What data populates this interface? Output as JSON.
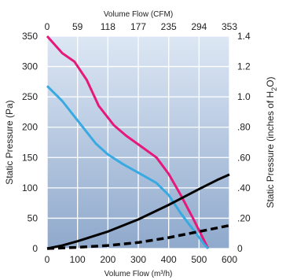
{
  "chart_data": {
    "type": "line",
    "title": "",
    "xlabel_bottom": "Volume Flow (m³/h)",
    "xlabel_top": "Volume Flow (CFM)",
    "ylabel_left": "Static Pressure (Pa)",
    "ylabel_right_prefix": "Static Pressure (inches of H",
    "ylabel_right_sub": "2",
    "ylabel_right_suffix": "O)",
    "xlim": [
      0,
      600
    ],
    "ylim": [
      0,
      350
    ],
    "ylim_right": [
      0,
      1.4
    ],
    "x_ticks": [
      "0",
      "100",
      "200",
      "300",
      "400",
      "500",
      "600"
    ],
    "x_tick_values": [
      0,
      100,
      200,
      300,
      400,
      500,
      600
    ],
    "x_top_ticks": [
      "0",
      "59",
      "118",
      "177",
      "235",
      "294",
      "353"
    ],
    "y_ticks": [
      "0",
      "50",
      "100",
      "150",
      "200",
      "250",
      "300",
      "350"
    ],
    "y_tick_values": [
      0,
      50,
      100,
      150,
      200,
      250,
      300,
      350
    ],
    "y_right_ticks": [
      "0",
      ".20",
      ".40",
      ".60",
      ".80",
      "1.0",
      "1.2",
      "1.4"
    ],
    "grid": true,
    "background_gradient": [
      "#dde7f4",
      "#8fa9cc"
    ],
    "series": [
      {
        "color": "#e6187a",
        "style": "solid",
        "points": [
          [
            0,
            350
          ],
          [
            50,
            322
          ],
          [
            90,
            308
          ],
          [
            130,
            278
          ],
          [
            170,
            235
          ],
          [
            220,
            203
          ],
          [
            260,
            186
          ],
          [
            310,
            168
          ],
          [
            360,
            150
          ],
          [
            400,
            123
          ],
          [
            440,
            88
          ],
          [
            480,
            50
          ],
          [
            510,
            20
          ],
          [
            530,
            0
          ]
        ]
      },
      {
        "color": "#39a9e2",
        "style": "solid",
        "points": [
          [
            0,
            268
          ],
          [
            50,
            243
          ],
          [
            110,
            205
          ],
          [
            160,
            173
          ],
          [
            200,
            155
          ],
          [
            250,
            139
          ],
          [
            300,
            125
          ],
          [
            360,
            108
          ],
          [
            400,
            88
          ],
          [
            440,
            58
          ],
          [
            490,
            25
          ],
          [
            520,
            5
          ],
          [
            530,
            0
          ]
        ]
      },
      {
        "color": "#000000",
        "style": "solid",
        "points": [
          [
            0,
            0
          ],
          [
            50,
            5
          ],
          [
            100,
            12
          ],
          [
            150,
            20
          ],
          [
            200,
            28
          ],
          [
            300,
            48
          ],
          [
            400,
            72
          ],
          [
            500,
            98
          ],
          [
            560,
            113
          ],
          [
            600,
            122
          ]
        ]
      },
      {
        "color": "#000000",
        "style": "dashed",
        "points": [
          [
            0,
            0
          ],
          [
            100,
            2
          ],
          [
            200,
            5
          ],
          [
            300,
            10
          ],
          [
            400,
            18
          ],
          [
            500,
            28
          ],
          [
            600,
            38
          ]
        ]
      }
    ]
  }
}
